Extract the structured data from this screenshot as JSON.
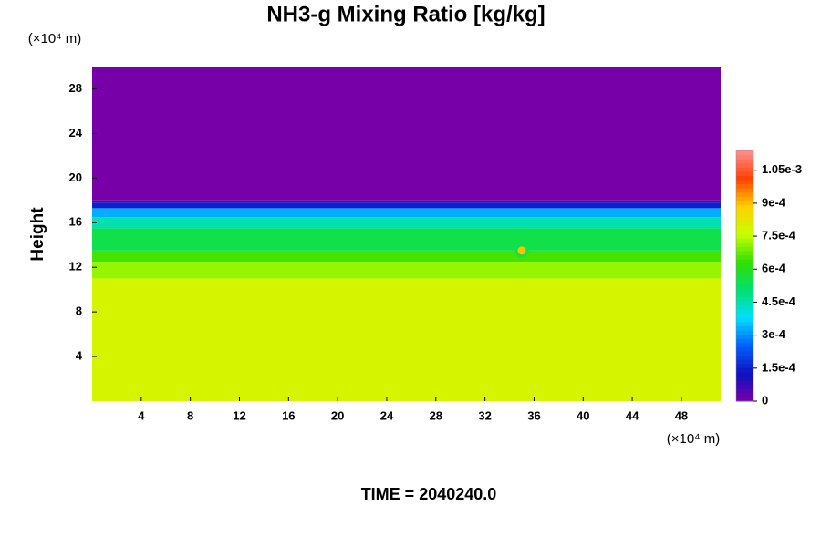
{
  "chart_data": {
    "type": "heatmap",
    "title": "NH3-g Mixing Ratio [kg/kg]",
    "y_label": "Height",
    "x_unit": "(×10⁴ m)",
    "y_unit": "(×10⁴ m)",
    "time_label": "TIME = 2040240.0",
    "xlim": [
      0,
      51.2
    ],
    "xticks": [
      4,
      8,
      12,
      16,
      20,
      24,
      28,
      32,
      36,
      40,
      44,
      48
    ],
    "ylim": [
      0,
      30
    ],
    "yticks": [
      4,
      8,
      12,
      16,
      20,
      24,
      28
    ],
    "zlim": [
      0,
      0.00114
    ],
    "zticks": [
      0,
      {
        "value": 0.00015,
        "label": "1.5e-4"
      },
      {
        "value": 0.0003,
        "label": "3e-4"
      },
      {
        "value": 0.00045,
        "label": "4.5e-4"
      },
      {
        "value": 0.0006,
        "label": "6e-4"
      },
      {
        "value": 0.00075,
        "label": "7.5e-4"
      },
      {
        "value": 0.0009,
        "label": "9e-4"
      },
      {
        "value": 0.00105,
        "label": "1.05e-3"
      }
    ],
    "colormap": [
      "#7800a8",
      "#1010c0",
      "#0060ff",
      "#00e0ff",
      "#00e070",
      "#30e000",
      "#c8ff00",
      "#ffd000",
      "#ff4000",
      "#ff9090"
    ],
    "y_edges": [
      0,
      11,
      12.5,
      13.5,
      15.5,
      16.5,
      17.3,
      17.8,
      18,
      30
    ],
    "band_values": [
      0.00079,
      0.00072,
      0.00065,
      0.00055,
      0.00045,
      0.00033,
      0.00015,
      6e-05,
      0
    ],
    "hotspot": {
      "x": 35,
      "y": 13.5,
      "value": 0.0009
    }
  }
}
